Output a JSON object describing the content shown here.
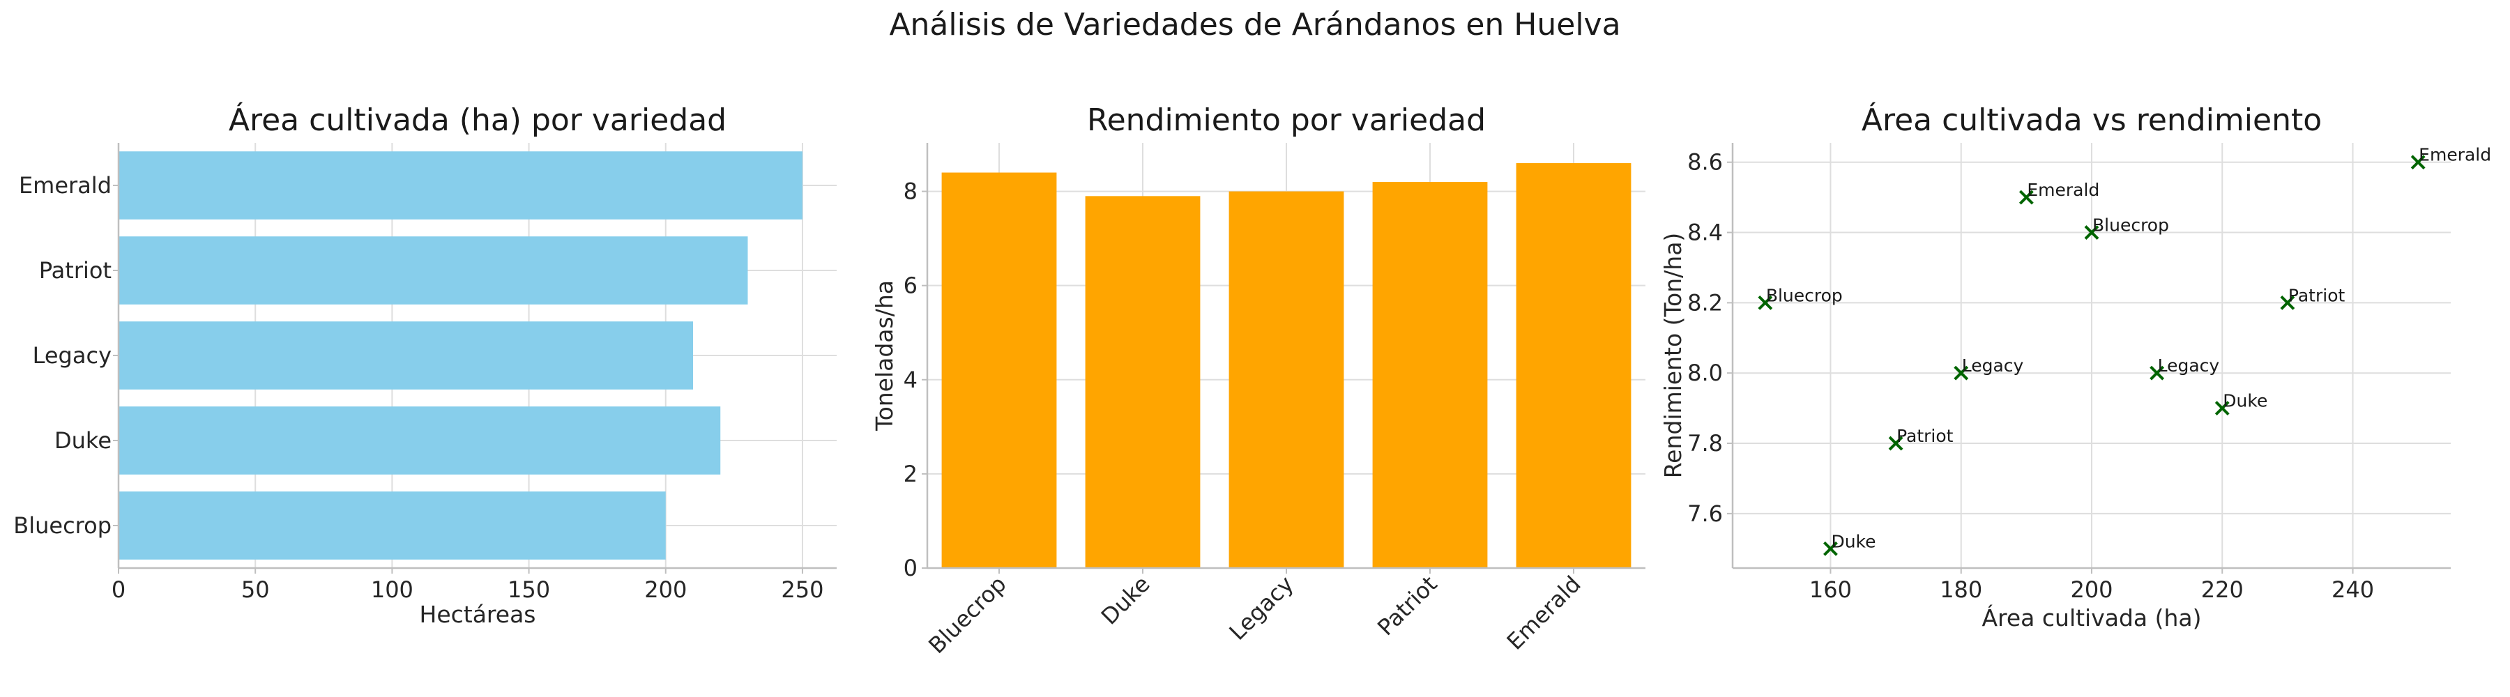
{
  "suptitle": "Análisis de Variedades de Arándanos en Huelva",
  "chart_data": [
    {
      "type": "bar",
      "orientation": "horizontal",
      "title": "Área cultivada (ha) por variedad",
      "xlabel": "Hectáreas",
      "ylabel": "",
      "categories": [
        "Bluecrop",
        "Duke",
        "Legacy",
        "Patriot",
        "Emerald"
      ],
      "values": [
        200,
        220,
        210,
        230,
        250
      ],
      "xlim": [
        0,
        262.5
      ],
      "xticks": [
        0,
        50,
        100,
        150,
        200,
        250
      ],
      "color": "#87CEEB",
      "grid": true
    },
    {
      "type": "bar",
      "orientation": "vertical",
      "title": "Rendimiento por variedad",
      "xlabel": "",
      "ylabel": "Toneladas/ha",
      "categories": [
        "Bluecrop",
        "Duke",
        "Legacy",
        "Patriot",
        "Emerald"
      ],
      "values": [
        8.4,
        7.9,
        8.0,
        8.2,
        8.6
      ],
      "ylim": [
        0,
        9.03
      ],
      "yticks": [
        0,
        2,
        4,
        6,
        8
      ],
      "tick_rotation": 45,
      "color": "#FFA500",
      "grid": true
    },
    {
      "type": "scatter",
      "title": "Área cultivada vs rendimiento",
      "xlabel": "Área cultivada (ha)",
      "ylabel": "Rendimiento (Ton/ha)",
      "points": [
        {
          "x": 150,
          "y": 8.2,
          "label": "Bluecrop"
        },
        {
          "x": 160,
          "y": 7.5,
          "label": "Duke"
        },
        {
          "x": 170,
          "y": 7.8,
          "label": "Patriot"
        },
        {
          "x": 180,
          "y": 8.0,
          "label": "Legacy"
        },
        {
          "x": 190,
          "y": 8.5,
          "label": "Emerald"
        },
        {
          "x": 200,
          "y": 8.4,
          "label": "Bluecrop"
        },
        {
          "x": 210,
          "y": 8.0,
          "label": "Legacy"
        },
        {
          "x": 220,
          "y": 7.9,
          "label": "Duke"
        },
        {
          "x": 230,
          "y": 8.2,
          "label": "Patriot"
        },
        {
          "x": 250,
          "y": 8.6,
          "label": "Emerald"
        }
      ],
      "xlim": [
        145,
        255
      ],
      "ylim": [
        7.445,
        8.655
      ],
      "xticks": [
        160,
        180,
        200,
        220,
        240
      ],
      "yticks": [
        7.6,
        7.8,
        8.0,
        8.2,
        8.4,
        8.6
      ],
      "marker": "x",
      "color": "#006400",
      "grid": true
    }
  ]
}
